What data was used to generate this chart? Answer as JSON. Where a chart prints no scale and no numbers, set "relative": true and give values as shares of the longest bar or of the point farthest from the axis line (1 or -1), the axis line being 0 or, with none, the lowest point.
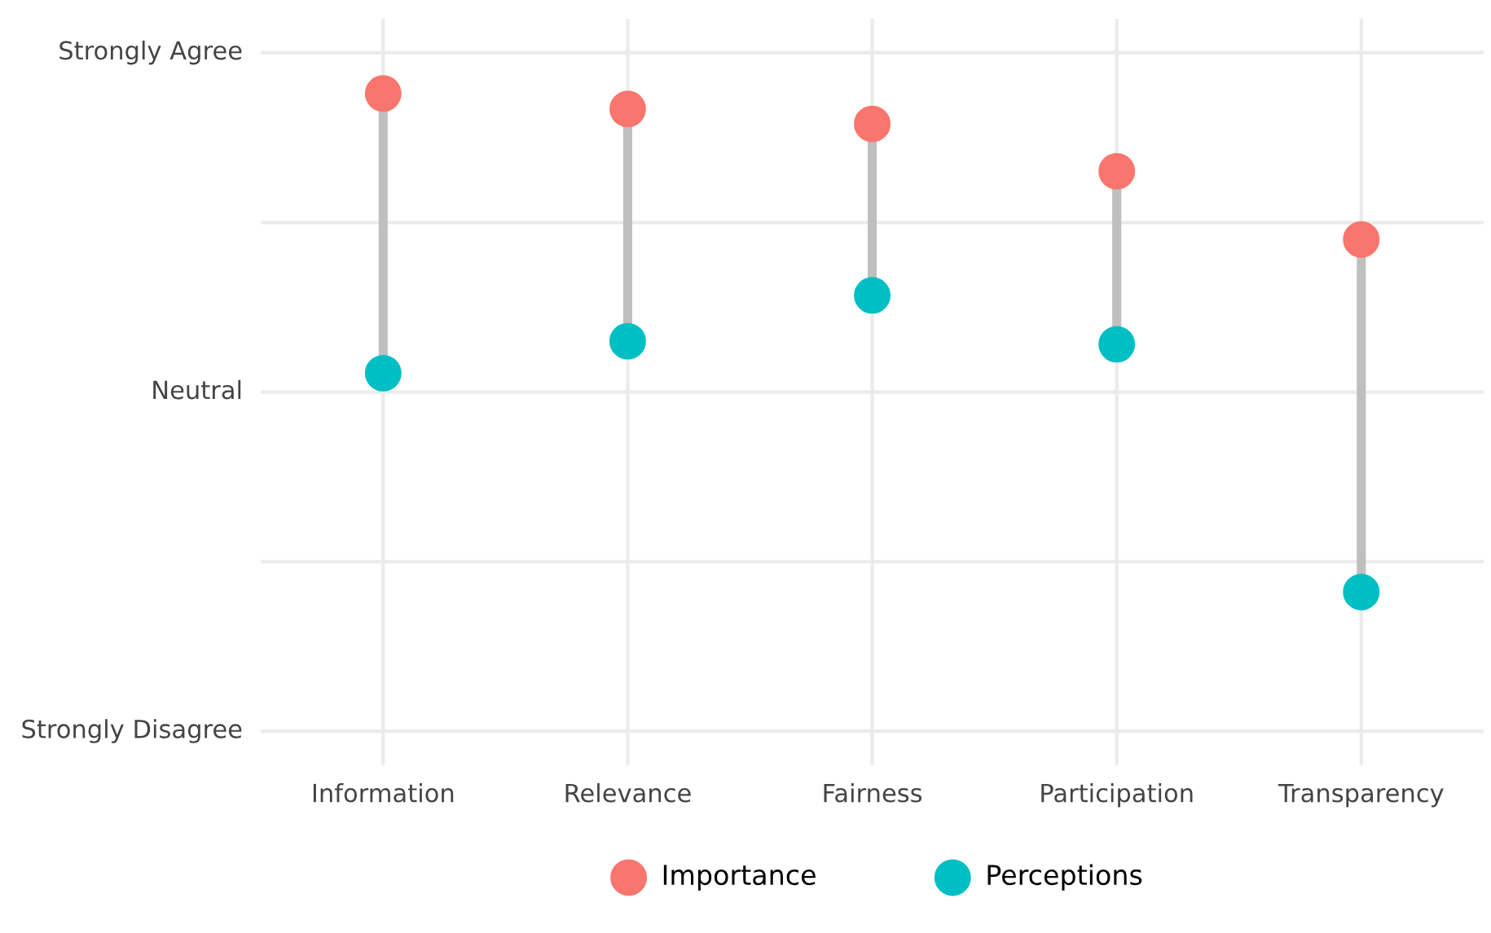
{
  "chart_data": {
    "type": "scatter",
    "categories": [
      "Information",
      "Relevance",
      "Fairness",
      "Participation",
      "Transparency"
    ],
    "relative": true,
    "series": [
      {
        "name": "Importance",
        "color": "#f8766d",
        "values": [
          1.0,
          0.969,
          0.939,
          0.844,
          0.707
        ]
      },
      {
        "name": "Perceptions",
        "color": "#00bfc4",
        "values": [
          0.439,
          0.503,
          0.595,
          0.497,
          0.0
        ]
      }
    ],
    "ref_lines": [
      {
        "axis": "y",
        "value": 1.082,
        "label": "Strongly Agree",
        "color": "#ebebeb"
      },
      {
        "axis": "y",
        "value": 0.741,
        "label": null,
        "color": "#ebebeb"
      },
      {
        "axis": "y",
        "value": 0.401,
        "label": "Neutral",
        "color": "#ebebeb"
      },
      {
        "axis": "y",
        "value": 0.061,
        "label": null,
        "color": "#ebebeb"
      },
      {
        "axis": "y",
        "value": -0.279,
        "label": "Strongly Disagree",
        "color": "#ebebeb"
      }
    ],
    "grid": "x",
    "legend": "bottom",
    "marker": "circle"
  }
}
